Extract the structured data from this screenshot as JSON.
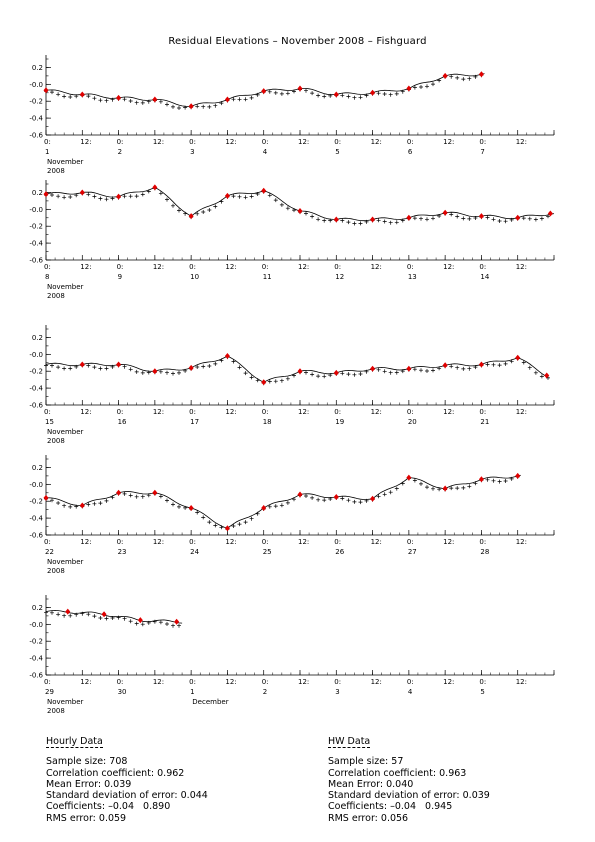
{
  "title": "Residual Elevations – November 2008 – Fishguard",
  "chart_data": [
    {
      "type": "line",
      "days": [
        1,
        2,
        3,
        4,
        5,
        6,
        7
      ],
      "day_labels": [
        "1",
        "2",
        "3",
        "4",
        "5",
        "6",
        "7"
      ],
      "month_label": "November",
      "year_label": "2008",
      "series": [
        {
          "style": "solid"
        },
        {
          "style": "plus"
        },
        {
          "style": "red-diamond"
        }
      ],
      "hw_points": [
        [
          1.0,
          -0.07
        ],
        [
          1.5,
          -0.12
        ],
        [
          2.0,
          -0.16
        ],
        [
          2.5,
          -0.18
        ],
        [
          3.0,
          -0.26
        ],
        [
          3.5,
          -0.18
        ],
        [
          4.0,
          -0.08
        ],
        [
          4.5,
          -0.05
        ],
        [
          5.0,
          -0.12
        ],
        [
          5.5,
          -0.1
        ],
        [
          6.0,
          -0.05
        ],
        [
          6.5,
          0.1
        ],
        [
          7.0,
          0.12
        ]
      ]
    },
    {
      "type": "line",
      "days": [
        8,
        9,
        10,
        11,
        12,
        13,
        14
      ],
      "day_labels": [
        "8",
        "9",
        "10",
        "11",
        "12",
        "13",
        "14"
      ],
      "month_label": "November",
      "year_label": "2008",
      "hw_points": [
        [
          8.0,
          0.18
        ],
        [
          8.5,
          0.2
        ],
        [
          9.0,
          0.15
        ],
        [
          9.5,
          0.26
        ],
        [
          10.0,
          -0.08
        ],
        [
          10.5,
          0.16
        ],
        [
          11.0,
          0.22
        ],
        [
          11.5,
          -0.02
        ],
        [
          12.0,
          -0.12
        ],
        [
          12.5,
          -0.12
        ],
        [
          13.0,
          -0.1
        ],
        [
          13.5,
          -0.04
        ],
        [
          14.0,
          -0.08
        ],
        [
          14.5,
          -0.1
        ],
        [
          14.95,
          -0.05
        ]
      ]
    },
    {
      "type": "line",
      "days": [
        15,
        16,
        17,
        18,
        19,
        20,
        21
      ],
      "day_labels": [
        "15",
        "16",
        "17",
        "18",
        "19",
        "20",
        "21"
      ],
      "month_label": "November",
      "year_label": "2008",
      "hw_points": [
        [
          15.5,
          -0.12
        ],
        [
          16.0,
          -0.12
        ],
        [
          16.5,
          -0.2
        ],
        [
          17.0,
          -0.16
        ],
        [
          17.5,
          -0.02
        ],
        [
          18.0,
          -0.33
        ],
        [
          18.5,
          -0.2
        ],
        [
          19.0,
          -0.22
        ],
        [
          19.5,
          -0.17
        ],
        [
          20.0,
          -0.17
        ],
        [
          20.5,
          -0.13
        ],
        [
          21.0,
          -0.12
        ],
        [
          21.5,
          -0.04
        ],
        [
          21.9,
          -0.25
        ]
      ]
    },
    {
      "type": "line",
      "days": [
        22,
        23,
        24,
        25,
        26,
        27,
        28
      ],
      "day_labels": [
        "22",
        "23",
        "24",
        "25",
        "26",
        "27",
        "28"
      ],
      "month_label": "November",
      "year_label": "2008",
      "hw_points": [
        [
          22.0,
          -0.16
        ],
        [
          22.5,
          -0.25
        ],
        [
          23.0,
          -0.1
        ],
        [
          23.5,
          -0.1
        ],
        [
          24.0,
          -0.28
        ],
        [
          24.5,
          -0.52
        ],
        [
          25.0,
          -0.28
        ],
        [
          25.5,
          -0.12
        ],
        [
          26.0,
          -0.15
        ],
        [
          26.5,
          -0.17
        ],
        [
          27.0,
          0.08
        ],
        [
          27.5,
          -0.05
        ],
        [
          28.0,
          0.06
        ],
        [
          28.5,
          0.1
        ]
      ]
    },
    {
      "type": "line",
      "days": [
        29,
        30,
        1,
        2,
        3,
        4,
        5
      ],
      "day_labels": [
        "29",
        "30",
        "1",
        "2",
        "3",
        "4",
        "5"
      ],
      "month_label": "November",
      "year_label": "2008",
      "month_label_2": "December",
      "hw_points": [
        [
          29.3,
          0.15
        ],
        [
          29.8,
          0.12
        ],
        [
          30.3,
          0.05
        ],
        [
          30.8,
          0.03
        ]
      ]
    }
  ],
  "axis": {
    "ylim": [
      -0.6,
      0.3
    ],
    "yticks": [
      "0.2",
      "-0.0",
      "-0.2",
      "-0.4",
      "-0.6"
    ],
    "hour_ticks": [
      "0:",
      "12:"
    ]
  },
  "stats": {
    "hourly": {
      "heading": "Hourly Data",
      "lines": [
        "Sample size: 708",
        "Correlation coefficient: 0.962",
        "Mean Error: 0.039",
        "Standard deviation of error: 0.044",
        "Coefficients: –0.04   0.890",
        "RMS error: 0.059"
      ]
    },
    "hw": {
      "heading": "HW Data",
      "lines": [
        "Sample size: 57",
        "Correlation coefficient: 0.963",
        "Mean Error: 0.040",
        "Standard deviation of error: 0.039",
        "Coefficients: –0.04   0.945",
        "RMS error: 0.056"
      ]
    }
  },
  "colors": {
    "line": "#000000",
    "hw": "#e00000"
  }
}
